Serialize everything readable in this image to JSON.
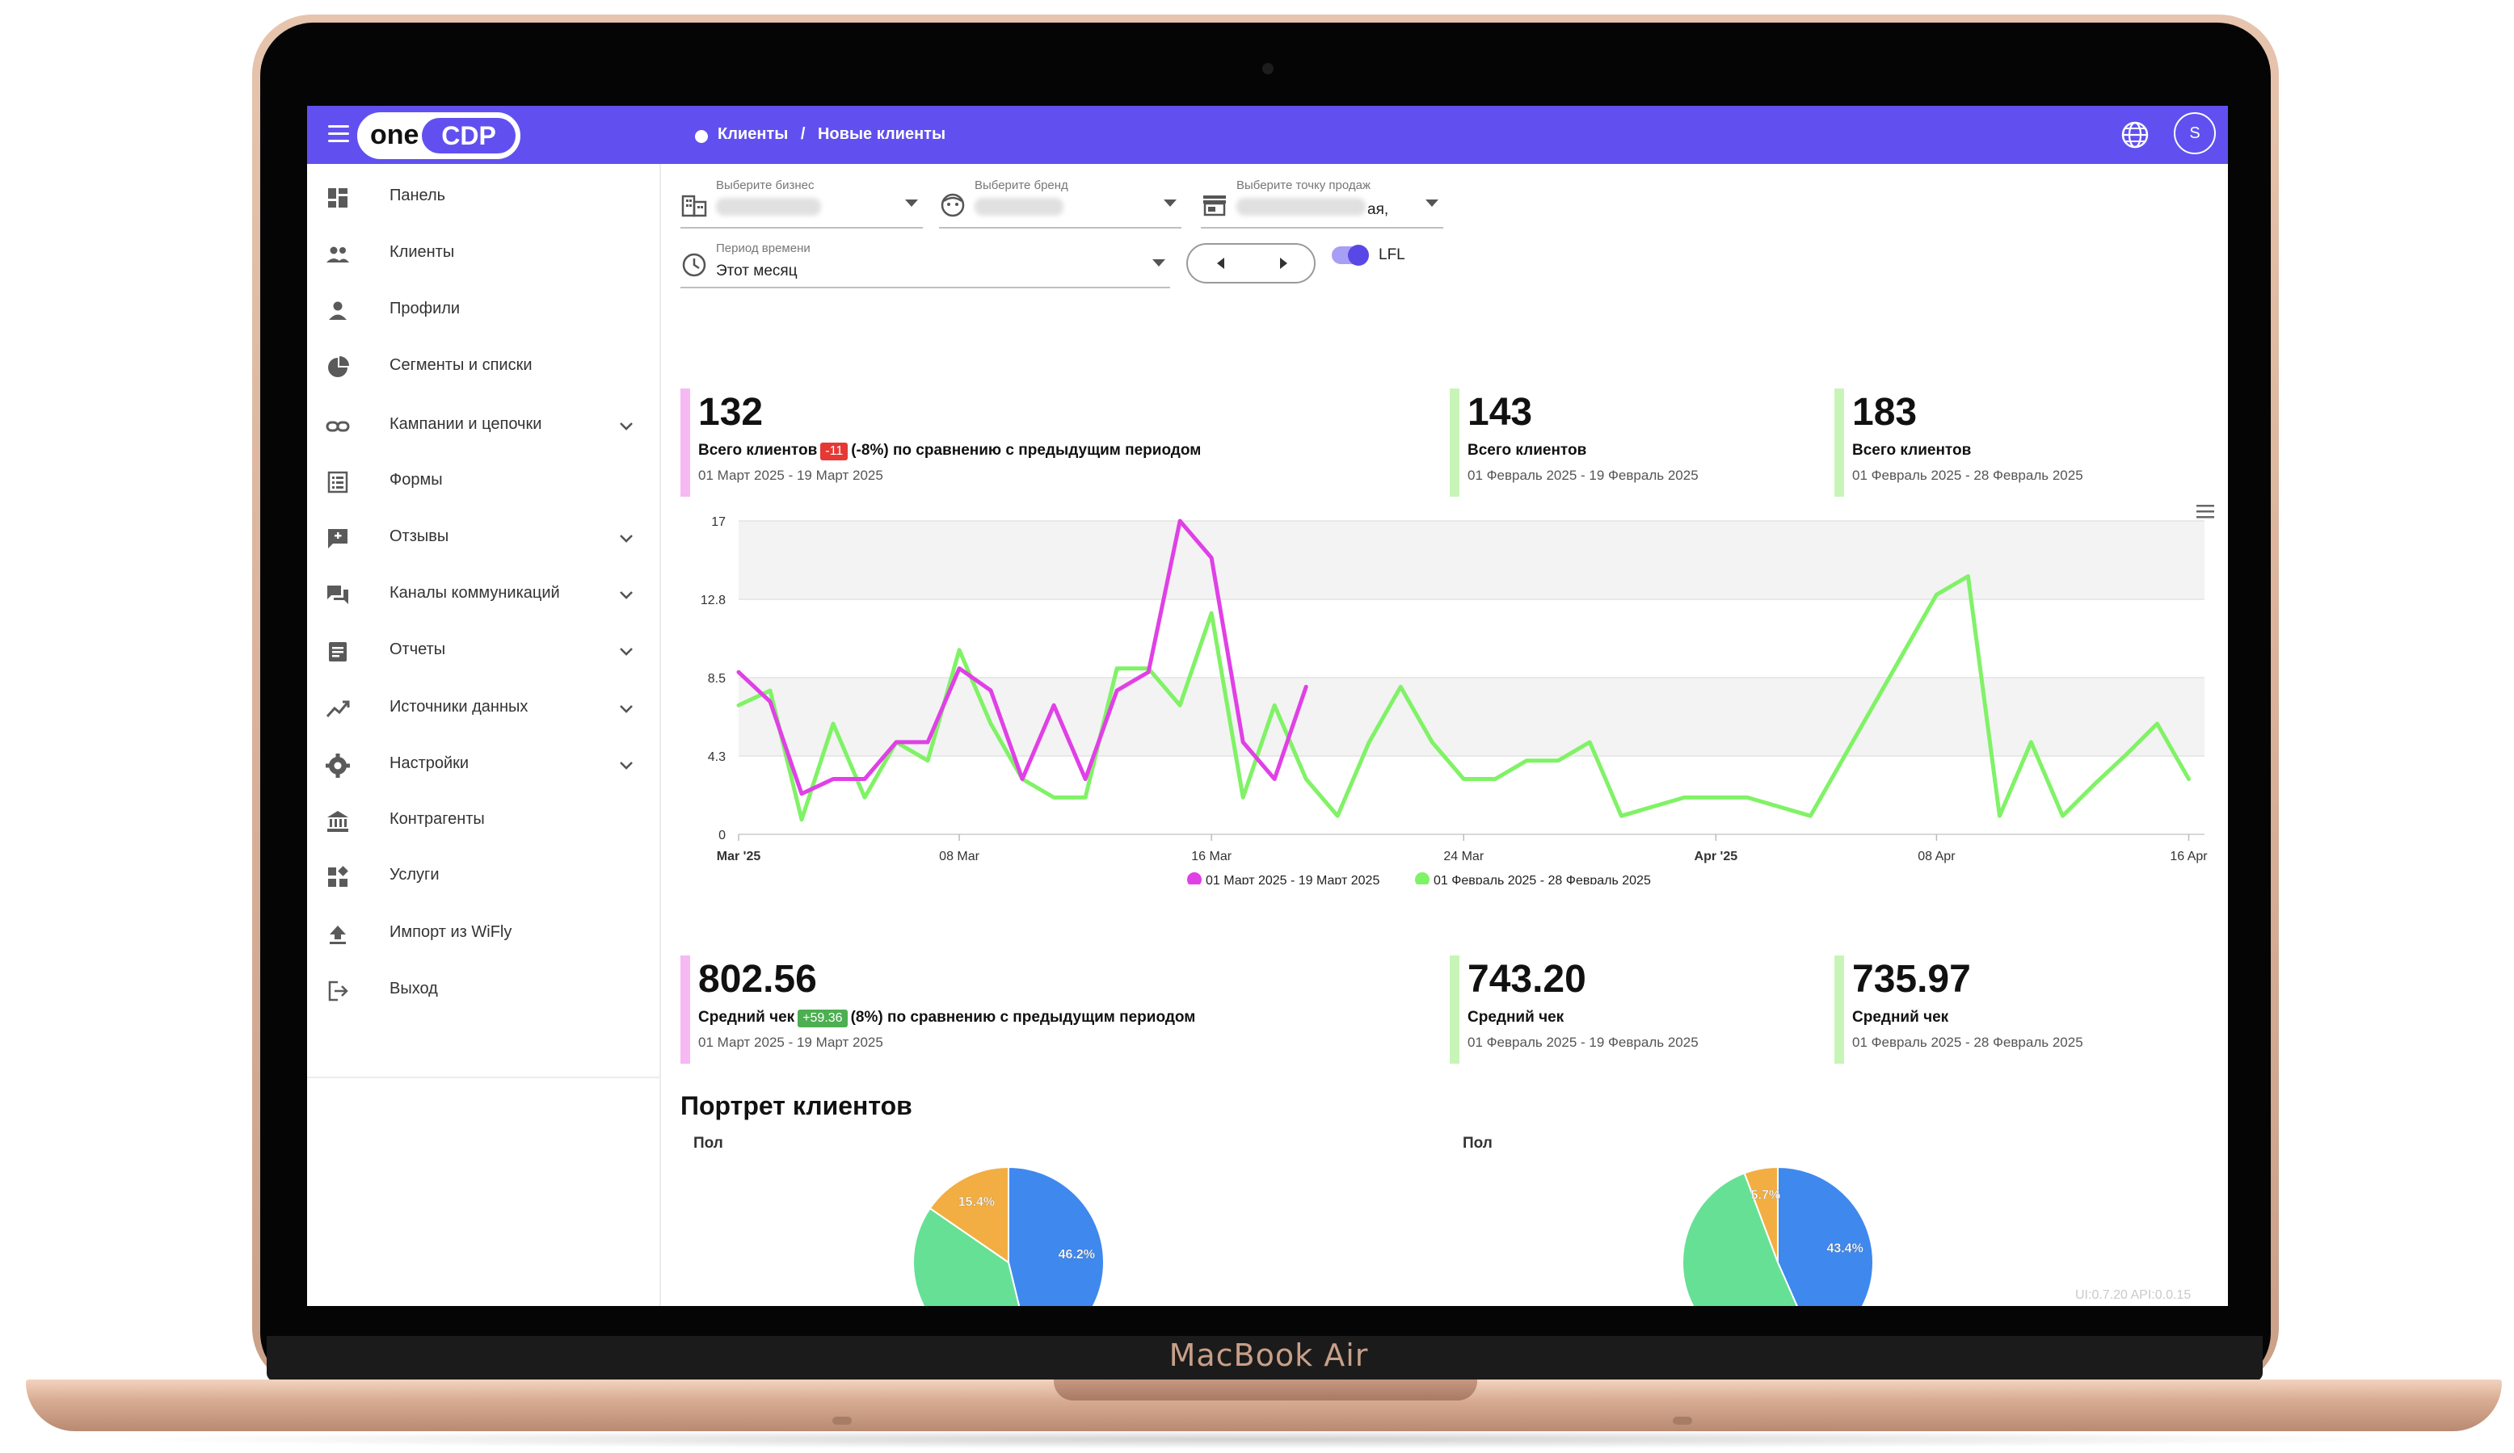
{
  "laptop": {
    "brand": "MacBook Air"
  },
  "topbar": {
    "logo_one": "one",
    "logo_cdp": "CDP",
    "breadcrumb": [
      "Клиенты",
      "Новые клиенты"
    ],
    "breadcrumb_sep": "/",
    "avatar_letter": "S",
    "icons": {
      "menu": "hamburger-icon",
      "language": "globe-icon"
    }
  },
  "sidebar": {
    "items": [
      {
        "label": "Панель",
        "icon": "dashboard-icon",
        "expandable": false
      },
      {
        "label": "Клиенты",
        "icon": "people-icon",
        "expandable": false
      },
      {
        "label": "Профили",
        "icon": "person-icon",
        "expandable": false
      },
      {
        "label": "Сегменты и списки",
        "icon": "pie-chart-icon",
        "expandable": false
      },
      {
        "label": "Кампании и цепочки",
        "icon": "link-icon",
        "expandable": true
      },
      {
        "label": "Формы",
        "icon": "form-icon",
        "expandable": false
      },
      {
        "label": "Отзывы",
        "icon": "feedback-icon",
        "expandable": true
      },
      {
        "label": "Каналы коммуникаций",
        "icon": "chat-icon",
        "expandable": true
      },
      {
        "label": "Отчеты",
        "icon": "report-icon",
        "expandable": true
      },
      {
        "label": "Источники данных",
        "icon": "trend-icon",
        "expandable": true
      },
      {
        "label": "Настройки",
        "icon": "gear-icon",
        "expandable": true
      },
      {
        "label": "Контрагенты",
        "icon": "bank-icon",
        "expandable": false
      },
      {
        "label": "Услуги",
        "icon": "widgets-icon",
        "expandable": false
      },
      {
        "label": "Импорт из WiFly",
        "icon": "upload-icon",
        "expandable": false
      },
      {
        "label": "Выход",
        "icon": "logout-icon",
        "expandable": false
      }
    ]
  },
  "filters": {
    "business": {
      "caption": "Выберите бизнес",
      "icon": "building-icon"
    },
    "brand": {
      "caption": "Выберите бренд",
      "icon": "face-icon"
    },
    "store": {
      "caption": "Выберите точку продаж",
      "value_suffix": "ая,",
      "icon": "store-icon"
    },
    "period": {
      "caption": "Период времени",
      "value": "Этот месяц",
      "icon": "clock-icon"
    },
    "lfl": {
      "label": "LFL",
      "enabled": true
    }
  },
  "kpis_clients": {
    "current": {
      "value": "132",
      "label": "Всего клиентов",
      "delta": "-11",
      "delta_text": "(-8%) по сравнению с предыдущим периодом",
      "range": "01 Март 2025 - 19 Март 2025",
      "delta_color": "#e53935"
    },
    "previous_same": {
      "value": "143",
      "label": "Всего клиентов",
      "range": "01 Февраль 2025 - 19 Февраль 2025"
    },
    "previous_full": {
      "value": "183",
      "label": "Всего клиентов",
      "range": "01 Февраль 2025 - 28 Февраль 2025"
    }
  },
  "kpis_check": {
    "current": {
      "value": "802.56",
      "label": "Средний чек",
      "delta": "+59.36",
      "delta_text": "(8%) по сравнению с предыдущим периодом",
      "range": "01 Март 2025 - 19 Март 2025",
      "delta_color": "#4caf50"
    },
    "previous_same": {
      "value": "743.20",
      "label": "Средний чек",
      "range": "01 Февраль 2025 - 19 Февраль 2025"
    },
    "previous_full": {
      "value": "735.97",
      "label": "Средний чек",
      "range": "01 Февраль 2025 - 28 Февраль 2025"
    }
  },
  "chart_data": [
    {
      "type": "line",
      "title": "",
      "xlabel": "",
      "ylabel": "",
      "ylim": [
        0,
        17
      ],
      "yticks": [
        "0",
        "4.3",
        "8.5",
        "12.8",
        "17"
      ],
      "xticks": [
        {
          "label": "Mar '25",
          "day": 0,
          "bold": true
        },
        {
          "label": "08 Mar",
          "day": 7,
          "bold": false
        },
        {
          "label": "16 Mar",
          "day": 15,
          "bold": false
        },
        {
          "label": "24 Mar",
          "day": 23,
          "bold": false
        },
        {
          "label": "Apr '25",
          "day": 31,
          "bold": true
        },
        {
          "label": "08 Apr",
          "day": 38,
          "bold": false
        },
        {
          "label": "16 Apr",
          "day": 46,
          "bold": false
        }
      ],
      "x_domain_days": [
        0,
        46.5
      ],
      "grid": true,
      "legend_position": "bottom",
      "series": [
        {
          "name": "01 Март 2025 - 19 Март 2025",
          "color": "#e040e6",
          "x": [
            0,
            1,
            2,
            3,
            4,
            5,
            6,
            7,
            8,
            9,
            10,
            11,
            12,
            13,
            14,
            15,
            16,
            17,
            18
          ],
          "values": [
            8.8,
            7.2,
            2.2,
            3,
            3,
            5,
            5,
            9,
            7.8,
            3,
            7,
            3,
            7.8,
            8.8,
            17,
            15,
            5,
            3,
            8
          ]
        },
        {
          "name": "01 Февраль 2025 - 28 Февраль 2025",
          "color": "#80f266",
          "x": [
            0,
            1,
            2,
            3,
            4,
            5,
            6,
            7,
            8,
            9,
            10,
            11,
            12,
            13,
            14,
            15,
            16,
            17,
            18,
            19,
            20,
            21,
            22,
            23,
            24,
            25,
            26,
            27,
            28,
            29,
            30,
            31,
            32,
            33,
            34,
            35,
            36,
            37,
            38,
            39,
            40,
            41,
            42,
            43,
            44,
            45,
            46
          ],
          "values": [
            7,
            7.8,
            0.8,
            6,
            2,
            5,
            4,
            10,
            6,
            3,
            2,
            2,
            9,
            9,
            7,
            12,
            2,
            7,
            3,
            1,
            5,
            8,
            5,
            3,
            3,
            4,
            4,
            5,
            1,
            1.5,
            2,
            2,
            2,
            1.5,
            1,
            4,
            7,
            10,
            13,
            14,
            1,
            5,
            1,
            2.7,
            4.3,
            6,
            3
          ]
        }
      ]
    },
    {
      "type": "pie",
      "title": "Пол",
      "values": [
        46.2,
        38.4,
        15.4
      ],
      "labels": [
        "46.2%",
        "",
        "15.4%"
      ],
      "colors": [
        "#3f88ee",
        "#66e095",
        "#f2ae42"
      ]
    },
    {
      "type": "pie",
      "title": "Пол",
      "values": [
        43.4,
        50.9,
        5.7
      ],
      "labels": [
        "43.4%",
        "",
        "5.7%"
      ],
      "colors": [
        "#3f88ee",
        "#66e095",
        "#f2ae42"
      ]
    }
  ],
  "portrait": {
    "title": "Портрет клиентов"
  },
  "footer": {
    "version": "UI:0.7.20 API:0.0.15"
  }
}
